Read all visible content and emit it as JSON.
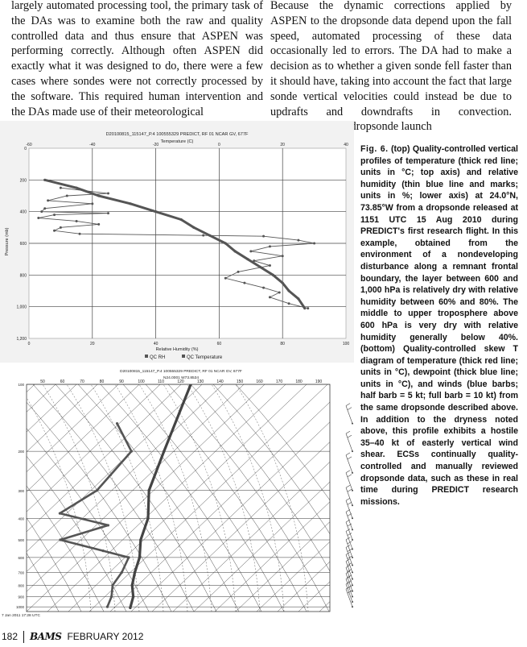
{
  "text_left": "largely automated processing tool, the primary task of the DAs was to examine both the raw and quality controlled data and thus ensure that ASPEN was performing correctly. Although often ASPEN did exactly what it was designed to do, there were a few cases where sondes were not correctly processed by the software. This required human intervention and the DAs made use of their meteorological",
  "text_right": "Because the dynamic corrections applied by ASPEN to the dropsonde data depend upon the fall speed, automated processing of these data occasionally led to errors. The DA had to make a decision as to whether a given sonde fell faster than it should have, taking into account the fact that large sonde vertical velocities could instead be due to updrafts and downdrafts in convection. Additionally, the dropsonde launch",
  "caption": {
    "label": "Fig. 6.",
    "text": "(top) Quality-controlled vertical profiles of temperature (thick red line; units in °C; top axis) and relative humidity (thin blue line and marks; units in %; lower axis) at 24.0°N, 73.85°W from a dropsonde released at 1151 UTC 15 Aug 2010 during PREDICT's first research flight. In this example, obtained from the environment of a nondeveloping disturbance along a remnant frontal boundary, the layer between 600 and 1,000 hPa is relatively dry with relative humidity between 60% and 80%. The middle to upper troposphere above 600 hPa is very dry with relative humidity generally below 40%. (bottom) Quality-controlled skew T diagram of temperature (thick red line; units in °C), dewpoint (thick blue line; units in °C), and winds (blue barbs; half barb = 5 kt; full barb = 10 kt) from the same dropsonde described above. In addition to the dryness noted above, this profile exhibits a hostile 35–40 kt of easterly vertical wind shear. ECSs continually quality-controlled and manually reviewed dropsonde data, such as these in real time during PREDICT research missions."
  },
  "footer": {
    "page": "182",
    "journal": "BAMS",
    "issue": "FEBRUARY 2012"
  },
  "chart_data": [
    {
      "type": "line",
      "title": "D20100815_115147_P.4 100555329 PREDICT, RF 01 NCAR GV, 677F",
      "top_axis_label": "Temperature (C)",
      "xlabel": "Relative Humidity (%)",
      "ylabel": "Pressure (mb)",
      "xlim_rh": [
        0,
        100
      ],
      "xlim_temp": [
        -60,
        40
      ],
      "ylim": [
        1200,
        0
      ],
      "y_ticks": [
        "0",
        "200",
        "400",
        "600",
        "800",
        "1,000",
        "1,200"
      ],
      "x_ticks_rh": [
        "0",
        "20",
        "40",
        "60",
        "80",
        "100"
      ],
      "x_ticks_temp": [
        "-60",
        "-40",
        "-20",
        "0",
        "20",
        "40"
      ],
      "legend": [
        "QC RH",
        "QC Temperature"
      ],
      "grid": true,
      "series": [
        {
          "name": "QC RH",
          "color": "#555555",
          "points": [
            [
              10,
              250
            ],
            [
              25,
              285
            ],
            [
              12,
              300
            ],
            [
              6,
              330
            ],
            [
              20,
              350
            ],
            [
              5,
              380
            ],
            [
              4,
              400
            ],
            [
              25,
              410
            ],
            [
              8,
              420
            ],
            [
              3,
              440
            ],
            [
              15,
              460
            ],
            [
              22,
              480
            ],
            [
              10,
              500
            ],
            [
              8,
              520
            ],
            [
              16,
              540
            ],
            [
              55,
              550
            ],
            [
              74,
              555
            ],
            [
              85,
              580
            ],
            [
              90,
              600
            ],
            [
              76,
              620
            ],
            [
              70,
              650
            ],
            [
              80,
              680
            ],
            [
              71,
              710
            ],
            [
              76,
              740
            ],
            [
              66,
              780
            ],
            [
              62,
              820
            ],
            [
              68,
              850
            ],
            [
              74,
              880
            ],
            [
              79,
              910
            ],
            [
              76,
              940
            ],
            [
              82,
              980
            ],
            [
              88,
              1010
            ]
          ]
        },
        {
          "name": "QC Temperature",
          "color": "#555555",
          "points": [
            [
              -55,
              200
            ],
            [
              -45,
              250
            ],
            [
              -38,
              300
            ],
            [
              -28,
              350
            ],
            [
              -20,
              400
            ],
            [
              -12,
              450
            ],
            [
              -8,
              500
            ],
            [
              -3,
              550
            ],
            [
              2,
              600
            ],
            [
              5,
              650
            ],
            [
              9,
              700
            ],
            [
              13,
              750
            ],
            [
              17,
              800
            ],
            [
              20,
              850
            ],
            [
              22,
              900
            ],
            [
              25,
              950
            ],
            [
              27,
              1010
            ]
          ]
        }
      ]
    },
    {
      "type": "scatter",
      "title": "D20100815_115147_P.4 100555329 PREDICT, RF 01 NCAR GV, 677F",
      "subtitle": "N24.0001 W73.8534",
      "top_ticks": [
        "50",
        "60",
        "70",
        "80",
        "90",
        "100",
        "110",
        "120",
        "130",
        "140",
        "150",
        "160",
        "170",
        "180",
        "190"
      ],
      "left_ticks": [
        "100",
        "200",
        "300",
        "400",
        "500",
        "600",
        "700",
        "800",
        "900",
        "1000"
      ],
      "footer_note": "7 Jan 2011 17:28 UTC",
      "series": [
        {
          "name": "Temperature",
          "points": [
            [
              -60,
              100
            ],
            [
              -40,
              200
            ],
            [
              -28,
              300
            ],
            [
              -15,
              400
            ],
            [
              -8,
              500
            ],
            [
              0,
              600
            ],
            [
              5,
              700
            ],
            [
              10,
              800
            ],
            [
              16,
              900
            ],
            [
              20,
              1010
            ]
          ]
        },
        {
          "name": "Dewpoint",
          "points": [
            [
              -75,
              150
            ],
            [
              -55,
              200
            ],
            [
              -52,
              300
            ],
            [
              -58,
              380
            ],
            [
              -30,
              430
            ],
            [
              -45,
              500
            ],
            [
              -20,
              560
            ],
            [
              -5,
              600
            ],
            [
              -1,
              700
            ],
            [
              1,
              800
            ],
            [
              6,
              900
            ],
            [
              9,
              1000
            ]
          ]
        }
      ]
    }
  ]
}
